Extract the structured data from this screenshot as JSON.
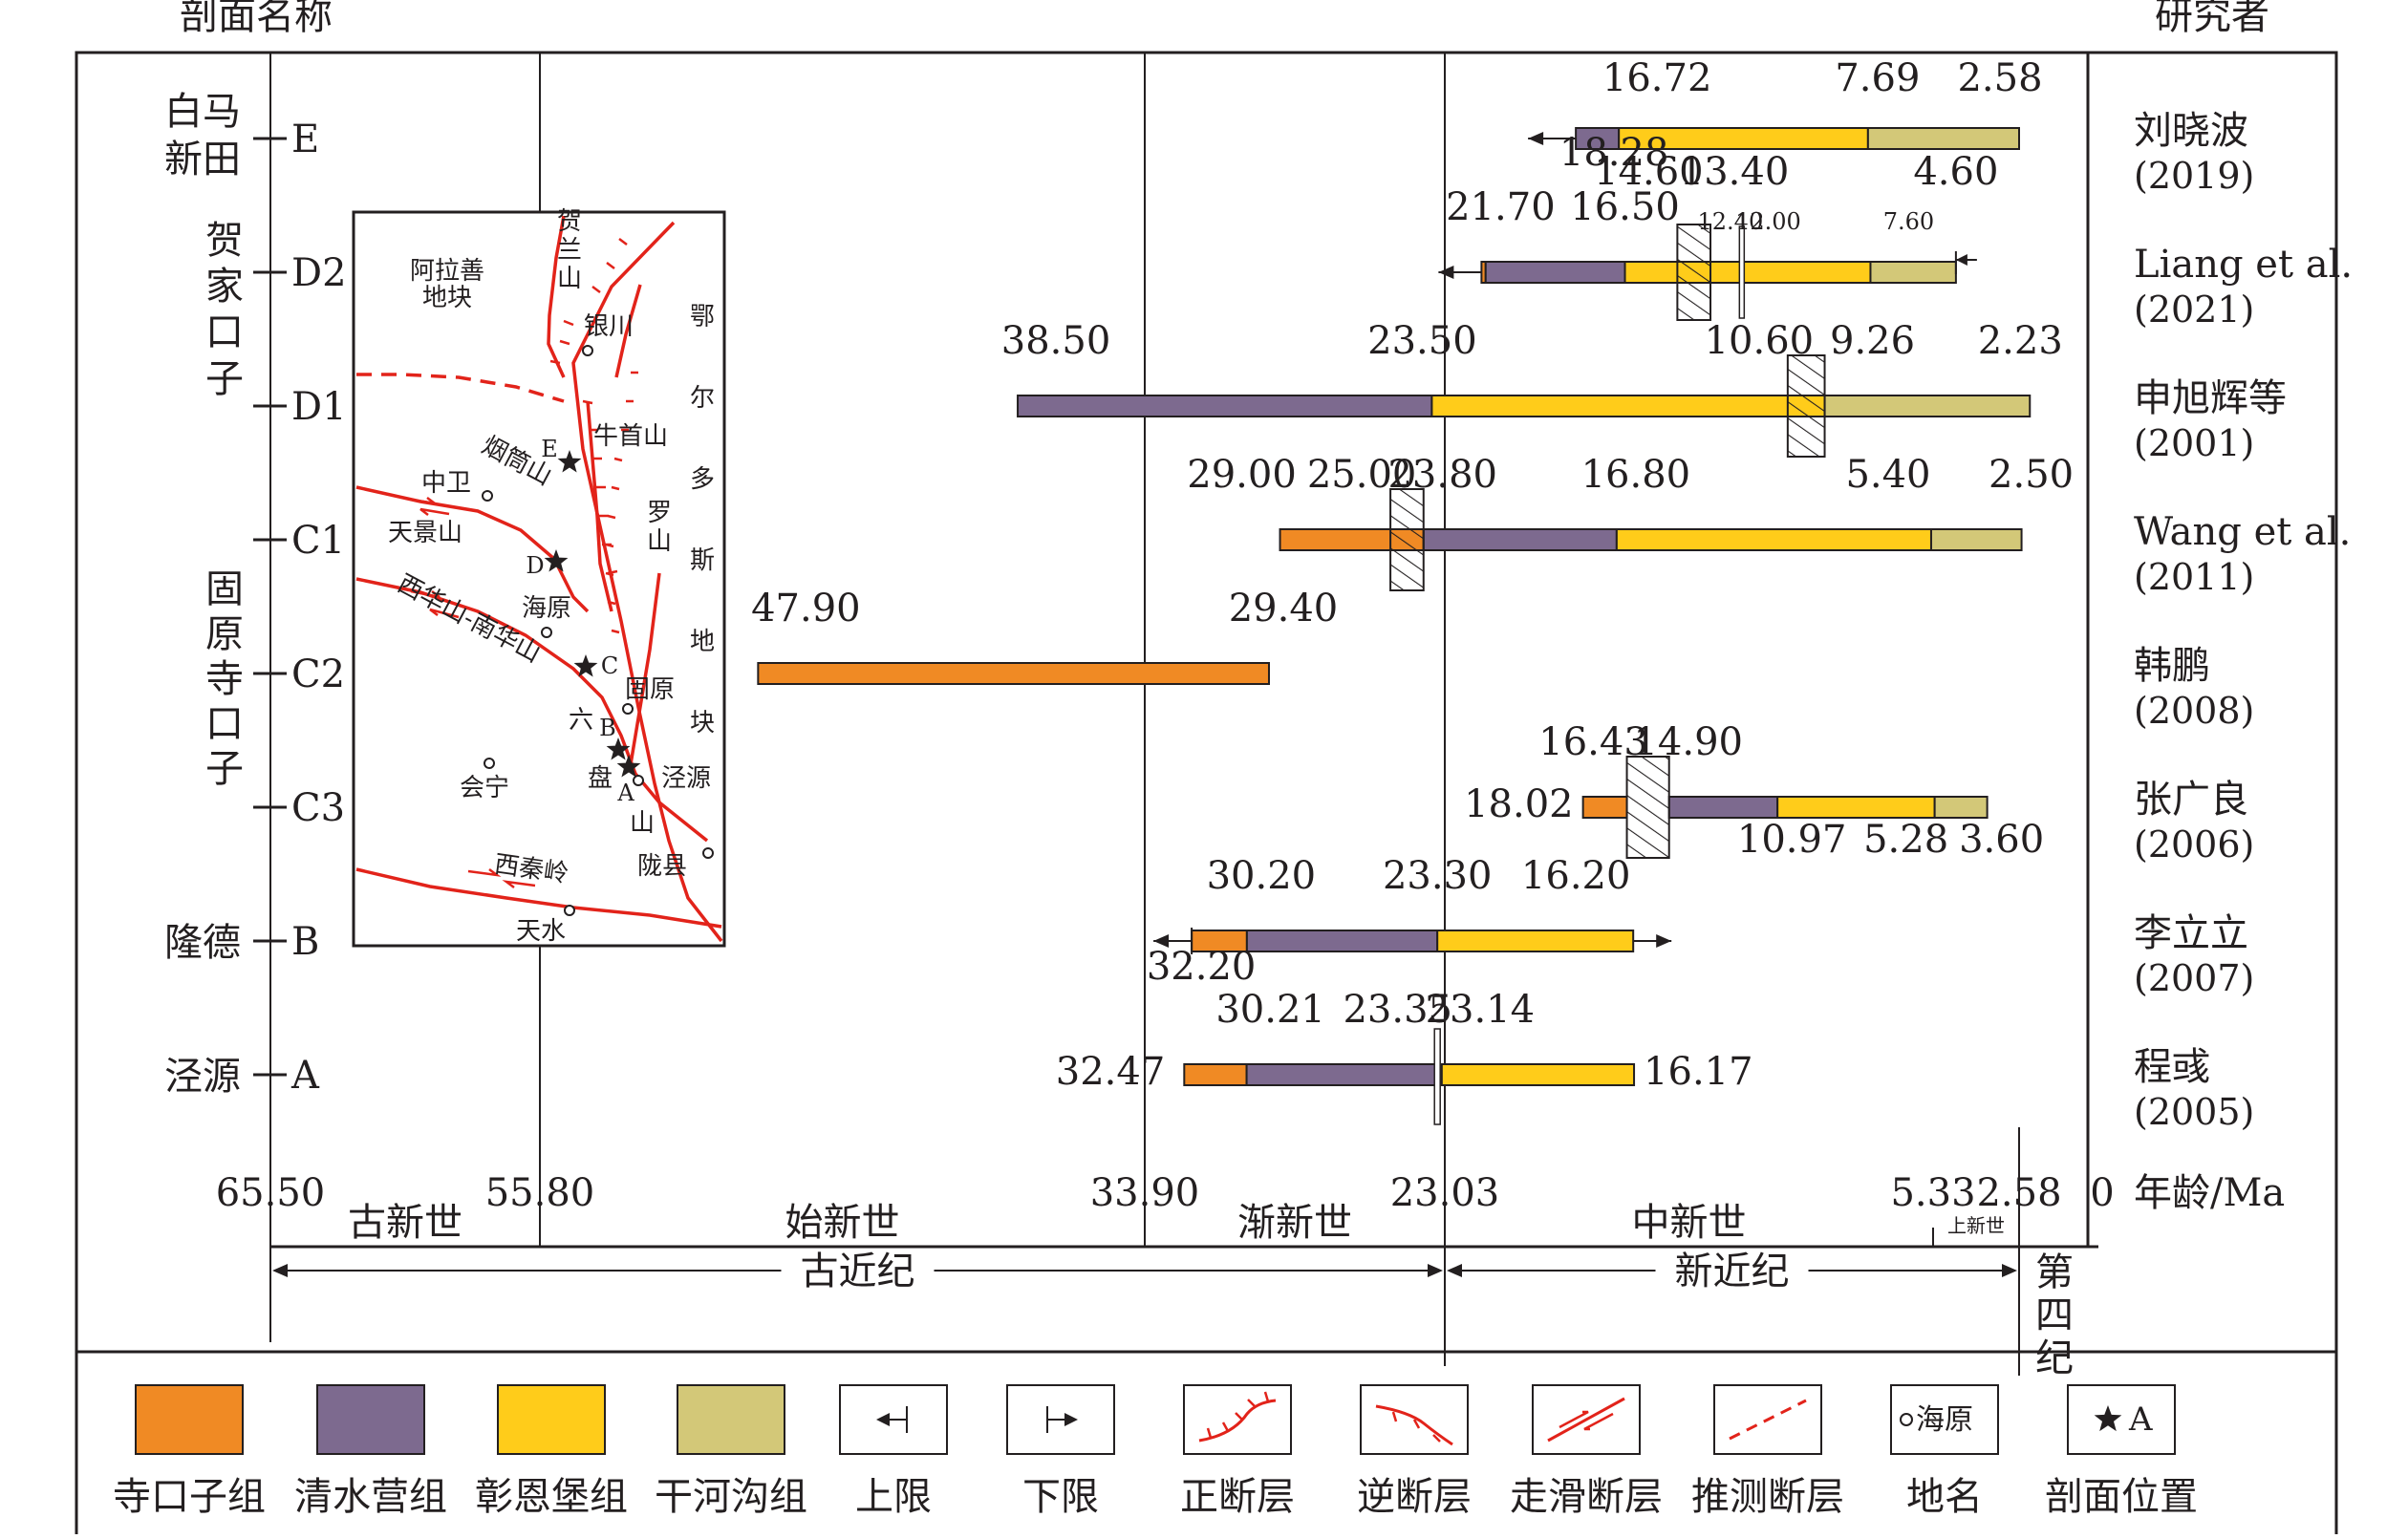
{
  "header": {
    "left_title": "剖面名称",
    "right_title": "研究者"
  },
  "colors": {
    "siKouZi": "#f08a24",
    "qingShuiYing": "#7d6a8f",
    "zhangEnBao": "#ffcc1a",
    "ganHeGou": "#d3c878",
    "fault_red": "#e2231a",
    "line": "#231f20"
  },
  "time_axis": {
    "ticks": [
      {
        "value": 65.5,
        "label": "65.50"
      },
      {
        "value": 55.8,
        "label": "55.80"
      },
      {
        "value": 33.9,
        "label": "33.90"
      },
      {
        "value": 23.03,
        "label": "23.03"
      },
      {
        "value": 5.33,
        "label": "5.33"
      },
      {
        "value": 2.58,
        "label": "2.58"
      },
      {
        "value": 0,
        "label": "0"
      }
    ],
    "unit_label": "年龄/Ma",
    "epochs": [
      {
        "label": "古新世",
        "from": 65.5,
        "to": 55.8
      },
      {
        "label": "始新世",
        "from": 55.8,
        "to": 33.9
      },
      {
        "label": "渐新世",
        "from": 33.9,
        "to": 23.03
      },
      {
        "label": "中新世",
        "from": 23.03,
        "to": 5.33
      },
      {
        "label": "上新世",
        "from": 5.33,
        "to": 2.58
      }
    ],
    "periods": [
      {
        "label": "古近纪",
        "from": 65.5,
        "to": 23.03
      },
      {
        "label": "新近纪",
        "from": 23.03,
        "to": 2.58
      },
      {
        "label": "第四纪",
        "from": 2.58,
        "to": 0
      }
    ]
  },
  "sections": [
    {
      "code": "E",
      "group": "白马新田",
      "researcher": "刘晓波",
      "year": "(2019)"
    },
    {
      "code": "D2",
      "group": "",
      "researcher": "Liang et al.",
      "year": "(2021)"
    },
    {
      "code": "D1",
      "group": "",
      "researcher": "申旭辉等",
      "year": "(2001)"
    },
    {
      "code": "C1",
      "group": "",
      "researcher": "Wang et al.",
      "year": "(2011)"
    },
    {
      "code": "C2",
      "group": "",
      "researcher": "韩鹏",
      "year": "(2008)"
    },
    {
      "code": "C3",
      "group": "",
      "researcher": "张广良",
      "year": "(2006)"
    },
    {
      "code": "B",
      "group": "隆德",
      "researcher": "李立立",
      "year": "(2007)"
    },
    {
      "code": "A",
      "group": "泾源",
      "researcher": "程彧",
      "year": "(2005)"
    }
  ],
  "section_groups": [
    {
      "label": "白马新田",
      "rows": [
        "E"
      ]
    },
    {
      "label": "贺家口子",
      "rows": [
        "D2",
        "D1"
      ]
    },
    {
      "label": "固原寺口子",
      "rows": [
        "C1",
        "C2",
        "C3"
      ]
    },
    {
      "label": "隆德",
      "rows": [
        "B"
      ]
    },
    {
      "label": "泾源",
      "rows": [
        "A"
      ]
    }
  ],
  "bars": [
    {
      "row": "E",
      "segments": [
        {
          "unit": "qingShuiYing",
          "from": 18.28,
          "to": 16.72
        },
        {
          "unit": "zhangEnBao",
          "from": 16.72,
          "to": 7.69
        },
        {
          "unit": "ganHeGou",
          "from": 7.69,
          "to": 2.58
        }
      ],
      "labels": [
        "16.72",
        "7.69",
        "2.58",
        "18.28"
      ]
    },
    {
      "row": "D2",
      "segments": [
        {
          "unit": "siKouZi",
          "from": 21.7,
          "to": 21.55
        },
        {
          "unit": "qingShuiYing",
          "from": 21.55,
          "to": 16.5
        },
        {
          "unit": "zhangEnBao",
          "from": 16.5,
          "to": 7.6
        },
        {
          "unit": "ganHeGou",
          "from": 7.6,
          "to": 4.6
        }
      ],
      "labels": [
        "21.70",
        "16.50",
        "14.60",
        "13.40",
        "12.40",
        "12.00",
        "7.60",
        "4.60"
      ]
    },
    {
      "row": "D1",
      "segments": [
        {
          "unit": "qingShuiYing",
          "from": 38.5,
          "to": 23.5
        },
        {
          "unit": "zhangEnBao",
          "from": 23.5,
          "to": 9.26
        },
        {
          "unit": "ganHeGou",
          "from": 9.26,
          "to": 2.23
        }
      ],
      "labels": [
        "38.50",
        "23.50",
        "10.60",
        "9.26",
        "2.23"
      ]
    },
    {
      "row": "C1",
      "segments": [
        {
          "unit": "siKouZi",
          "from": 29.0,
          "to": 23.8
        },
        {
          "unit": "qingShuiYing",
          "from": 23.8,
          "to": 16.8
        },
        {
          "unit": "zhangEnBao",
          "from": 16.8,
          "to": 5.4
        },
        {
          "unit": "ganHeGou",
          "from": 5.4,
          "to": 2.5
        }
      ],
      "labels": [
        "29.00",
        "25.00",
        "23.80",
        "16.80",
        "5.40",
        "2.50"
      ]
    },
    {
      "row": "C2",
      "segments": [
        {
          "unit": "siKouZi",
          "from": 47.9,
          "to": 29.4
        }
      ],
      "labels": [
        "47.90",
        "29.40"
      ]
    },
    {
      "row": "C3",
      "segments": [
        {
          "unit": "siKouZi",
          "from": 18.02,
          "to": 16.43
        },
        {
          "unit": "qingShuiYing",
          "from": 14.9,
          "to": 10.97
        },
        {
          "unit": "zhangEnBao",
          "from": 10.97,
          "to": 5.28
        },
        {
          "unit": "ganHeGou",
          "from": 5.28,
          "to": 3.6
        }
      ],
      "labels": [
        "16.43",
        "14.90",
        "18.02",
        "10.97",
        "5.28",
        "3.60"
      ]
    },
    {
      "row": "B",
      "segments": [
        {
          "unit": "siKouZi",
          "from": 32.2,
          "to": 30.2
        },
        {
          "unit": "qingShuiYing",
          "from": 30.2,
          "to": 23.3
        },
        {
          "unit": "zhangEnBao",
          "from": 23.3,
          "to": 16.2
        }
      ],
      "labels": [
        "30.20",
        "23.30",
        "16.20",
        "32.20"
      ]
    },
    {
      "row": "A",
      "segments": [
        {
          "unit": "siKouZi",
          "from": 32.47,
          "to": 30.21
        },
        {
          "unit": "qingShuiYing",
          "from": 30.21,
          "to": 23.35
        },
        {
          "unit": "zhangEnBao",
          "from": 23.14,
          "to": 16.17
        }
      ],
      "labels": [
        "30.21",
        "23.35",
        "23.14",
        "32.47",
        "16.17"
      ]
    }
  ],
  "map": {
    "labels": {
      "alashan": [
        "阿拉善",
        "地块"
      ],
      "helanshan": [
        "贺",
        "兰",
        "山"
      ],
      "yinchuan": "银川",
      "ordos": [
        "鄂",
        "尔",
        "多",
        "斯",
        "地",
        "块"
      ],
      "niushoushan": "牛首山",
      "yantongshan": "烟筒山",
      "luoshan": [
        "罗",
        "山"
      ],
      "zhongwei": "中卫",
      "tianjingshan": "天景山",
      "haiyuan": "海原",
      "xihuashan": "西华山-南华山",
      "guyuan": "固原",
      "liupanshan": [
        "六",
        "盘",
        "山"
      ],
      "jingyuan": "泾源",
      "huining": "会宁",
      "longxian": "陇县",
      "xiqinling": "西秦岭",
      "tianshui": "天水",
      "sites": [
        "E",
        "D",
        "C",
        "B",
        "A"
      ]
    }
  },
  "legend": [
    {
      "key": "siKouZi",
      "label": "寺口子组"
    },
    {
      "key": "qingShuiYing",
      "label": "清水营组"
    },
    {
      "key": "zhangEnBao",
      "label": "彰恩堡组"
    },
    {
      "key": "ganHeGou",
      "label": "干河沟组"
    },
    {
      "key": "upper_limit",
      "label": "上限"
    },
    {
      "key": "lower_limit",
      "label": "下限"
    },
    {
      "key": "normal_fault",
      "label": "正断层"
    },
    {
      "key": "reverse_fault",
      "label": "逆断层"
    },
    {
      "key": "strike_slip",
      "label": "走滑断层"
    },
    {
      "key": "inferred_fault",
      "label": "推测断层"
    },
    {
      "key": "place_name",
      "label": "地名",
      "sample": "海原"
    },
    {
      "key": "section_location",
      "label": "剖面位置",
      "sample": "A"
    }
  ]
}
